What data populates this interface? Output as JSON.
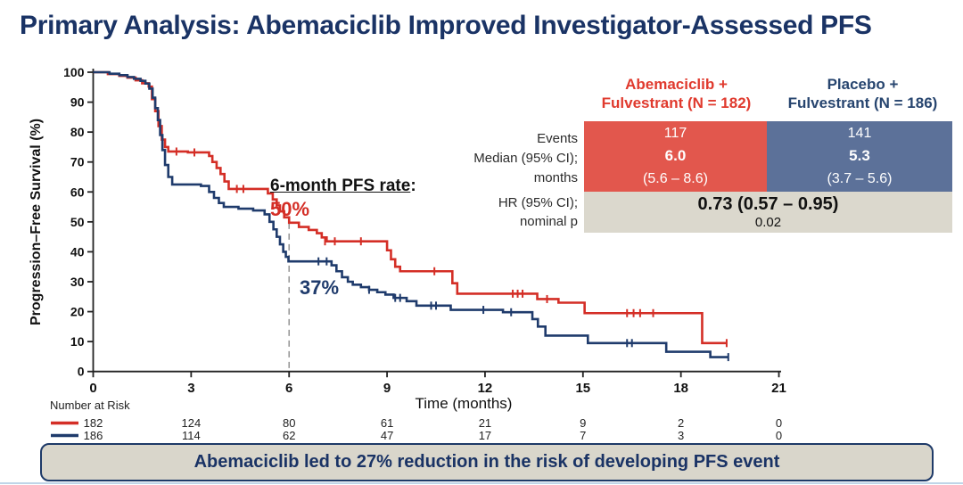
{
  "slide": {
    "title": "Primary Analysis: Abemaciclib Improved Investigator-Assessed PFS",
    "footer_banner": "Abemaciclib led to 27% reduction in the risk of developing PFS event"
  },
  "results_table": {
    "header_red_line1": "Abemaciclib +",
    "header_red_line2": "Fulvestrant (N = 182)",
    "header_blue_line1": "Placebo +",
    "header_blue_line2": "Fulvestrant (N = 186)",
    "label_events": "Events",
    "label_median1": "Median (95% CI);",
    "label_median2": "months",
    "label_hr1": "HR (95% CI);",
    "label_hr2": "nominal p",
    "events": [
      "117",
      "141"
    ],
    "median": [
      "6.0",
      "5.3"
    ],
    "median_ci": [
      "(5.6 – 8.6)",
      "(3.7 – 5.6)"
    ],
    "hr_value": "0.73 (0.57 – 0.95)",
    "nominal_p": "0.02",
    "colors": {
      "red_cell": "#e2574d",
      "blue_cell": "#5c7199",
      "hr_cell": "#dbd8cd"
    }
  },
  "chart_data": {
    "type": "line",
    "subtype": "kaplan-meier-step",
    "title": "",
    "xlabel": "Time (months)",
    "ylabel": "Progression–Free Survival (%)",
    "xlim": [
      0,
      21
    ],
    "ylim": [
      0,
      100
    ],
    "xticks": [
      0,
      3,
      6,
      9,
      12,
      15,
      18,
      21
    ],
    "yticks": [
      0,
      10,
      20,
      30,
      40,
      50,
      60,
      70,
      80,
      90,
      100
    ],
    "grid": false,
    "legend_position": "none",
    "series": [
      {
        "name": "Abemaciclib + Fulvestrant",
        "color": "#d42e26",
        "median_months": 6.0,
        "six_month_rate": 50,
        "steps": [
          [
            0,
            100
          ],
          [
            0.45,
            99.4
          ],
          [
            0.8,
            98.8
          ],
          [
            1.05,
            98.2
          ],
          [
            1.3,
            97.3
          ],
          [
            1.5,
            96.3
          ],
          [
            1.7,
            95.2
          ],
          [
            1.8,
            91
          ],
          [
            1.9,
            87
          ],
          [
            2.0,
            82
          ],
          [
            2.1,
            77.5
          ],
          [
            2.2,
            75
          ],
          [
            2.3,
            73.5
          ],
          [
            2.9,
            73.2
          ],
          [
            3.55,
            72
          ],
          [
            3.65,
            70
          ],
          [
            3.78,
            68
          ],
          [
            3.9,
            66
          ],
          [
            4.02,
            63.5
          ],
          [
            4.15,
            61
          ],
          [
            5.35,
            59.5
          ],
          [
            5.5,
            57.5
          ],
          [
            5.62,
            55.5
          ],
          [
            5.72,
            53.5
          ],
          [
            5.85,
            51.5
          ],
          [
            6.0,
            49.7
          ],
          [
            6.3,
            48.3
          ],
          [
            6.6,
            47.3
          ],
          [
            6.85,
            46.2
          ],
          [
            7.0,
            44.8
          ],
          [
            7.15,
            43.5
          ],
          [
            9.0,
            40.5
          ],
          [
            9.12,
            37.5
          ],
          [
            9.25,
            35
          ],
          [
            9.4,
            33.5
          ],
          [
            11.0,
            29.5
          ],
          [
            11.15,
            26
          ],
          [
            13.6,
            24.2
          ],
          [
            14.25,
            23
          ],
          [
            15.05,
            19.5
          ],
          [
            18.65,
            9.5
          ],
          [
            19.4,
            9.5
          ]
        ],
        "censors": [
          [
            2.55,
            73.5
          ],
          [
            3.1,
            73.2
          ],
          [
            4.4,
            61
          ],
          [
            4.6,
            61
          ],
          [
            7.1,
            43.5
          ],
          [
            7.4,
            43.5
          ],
          [
            8.2,
            43.5
          ],
          [
            10.45,
            33.5
          ],
          [
            12.85,
            26
          ],
          [
            13.0,
            26
          ],
          [
            13.15,
            26
          ],
          [
            13.9,
            24.2
          ],
          [
            16.35,
            19.5
          ],
          [
            16.55,
            19.5
          ],
          [
            16.75,
            19.5
          ],
          [
            17.15,
            19.5
          ],
          [
            19.4,
            9.5
          ]
        ]
      },
      {
        "name": "Placebo + Fulvestrant",
        "color": "#1f3b6c",
        "median_months": 5.3,
        "six_month_rate": 37,
        "steps": [
          [
            0,
            100
          ],
          [
            0.5,
            99.5
          ],
          [
            0.8,
            99
          ],
          [
            1.05,
            98.4
          ],
          [
            1.25,
            97.8
          ],
          [
            1.45,
            97.1
          ],
          [
            1.6,
            96.2
          ],
          [
            1.72,
            94.5
          ],
          [
            1.82,
            91.5
          ],
          [
            1.9,
            88
          ],
          [
            1.98,
            84
          ],
          [
            2.05,
            79
          ],
          [
            2.12,
            74
          ],
          [
            2.2,
            69
          ],
          [
            2.3,
            65
          ],
          [
            2.42,
            62.5
          ],
          [
            3.3,
            62
          ],
          [
            3.55,
            60
          ],
          [
            3.7,
            58
          ],
          [
            3.85,
            56.3
          ],
          [
            4.0,
            55
          ],
          [
            4.45,
            54.4
          ],
          [
            4.9,
            53.8
          ],
          [
            5.25,
            52.5
          ],
          [
            5.4,
            50
          ],
          [
            5.52,
            47.5
          ],
          [
            5.62,
            45
          ],
          [
            5.72,
            42.5
          ],
          [
            5.82,
            40
          ],
          [
            5.9,
            38.3
          ],
          [
            5.98,
            36.8
          ],
          [
            7.3,
            35.5
          ],
          [
            7.45,
            33.5
          ],
          [
            7.62,
            31.5
          ],
          [
            7.8,
            30
          ],
          [
            7.95,
            29
          ],
          [
            8.2,
            28.2
          ],
          [
            8.45,
            27.3
          ],
          [
            8.7,
            26.5
          ],
          [
            8.95,
            25.7
          ],
          [
            9.2,
            24.6
          ],
          [
            9.6,
            23.5
          ],
          [
            9.9,
            22
          ],
          [
            10.95,
            20.6
          ],
          [
            12.55,
            19.8
          ],
          [
            13.45,
            17.5
          ],
          [
            13.62,
            15
          ],
          [
            13.85,
            12
          ],
          [
            15.15,
            9.5
          ],
          [
            17.55,
            6.6
          ],
          [
            18.9,
            4.8
          ],
          [
            19.45,
            4.8
          ]
        ],
        "censors": [
          [
            6.9,
            36.8
          ],
          [
            7.15,
            36.8
          ],
          [
            8.45,
            27.3
          ],
          [
            9.25,
            24.6
          ],
          [
            9.4,
            24.6
          ],
          [
            10.35,
            22
          ],
          [
            10.5,
            22
          ],
          [
            11.95,
            20.6
          ],
          [
            12.8,
            19.8
          ],
          [
            16.35,
            9.5
          ],
          [
            16.5,
            9.5
          ],
          [
            19.45,
            4.8
          ]
        ]
      }
    ],
    "reference_line": {
      "x": 6,
      "y_top": 49.7,
      "y_bottom": 0,
      "style": "dashed",
      "color": "#999999"
    },
    "annotations": {
      "rate_label": "6-month PFS rate",
      "rate_colon": ":",
      "abemaciclib_rate": "50%",
      "placebo_rate": "37%"
    },
    "risk_table": {
      "label": "Number at Risk",
      "times": [
        0,
        3,
        6,
        9,
        12,
        15,
        18,
        21
      ],
      "rows": [
        {
          "name": "Abemaciclib + Fulvestrant",
          "color": "#d42e26",
          "counts": [
            182,
            124,
            80,
            61,
            21,
            9,
            2,
            0
          ]
        },
        {
          "name": "Placebo + Fulvestrant",
          "color": "#1f3b6c",
          "counts": [
            186,
            114,
            62,
            47,
            17,
            7,
            3,
            0
          ]
        }
      ]
    }
  }
}
